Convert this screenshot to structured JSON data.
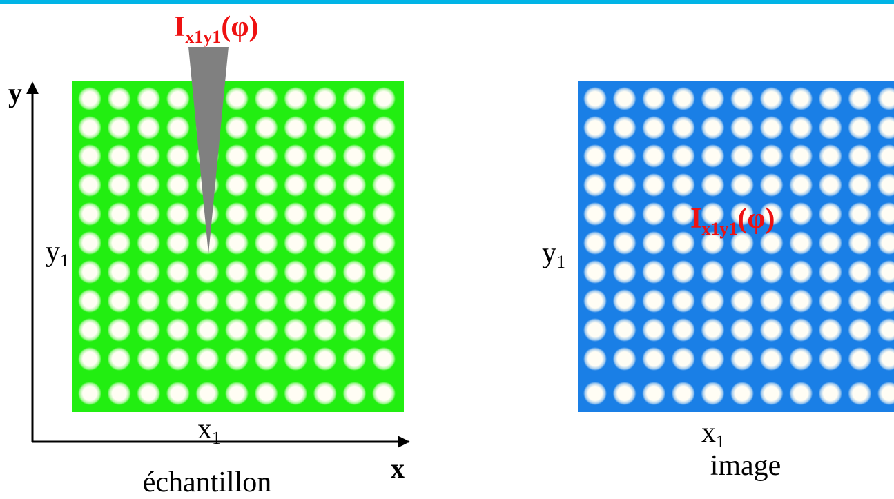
{
  "sample_panel": {
    "probe_label": {
      "main": "I",
      "subscript": "x1y1",
      "argument": "(φ)"
    },
    "y_axis": "y",
    "x_axis": "x",
    "y_mark": {
      "main": "y",
      "subscript": "1"
    },
    "x_mark": {
      "main": "x",
      "subscript": "1"
    },
    "caption": "échantillon"
  },
  "image_panel": {
    "pixel_label": {
      "main": "I",
      "subscript": "x1y1",
      "argument": "(φ)"
    },
    "y_mark": {
      "main": "y",
      "subscript": "1"
    },
    "x_mark": {
      "main": "x",
      "subscript": "1"
    },
    "caption": "image"
  }
}
